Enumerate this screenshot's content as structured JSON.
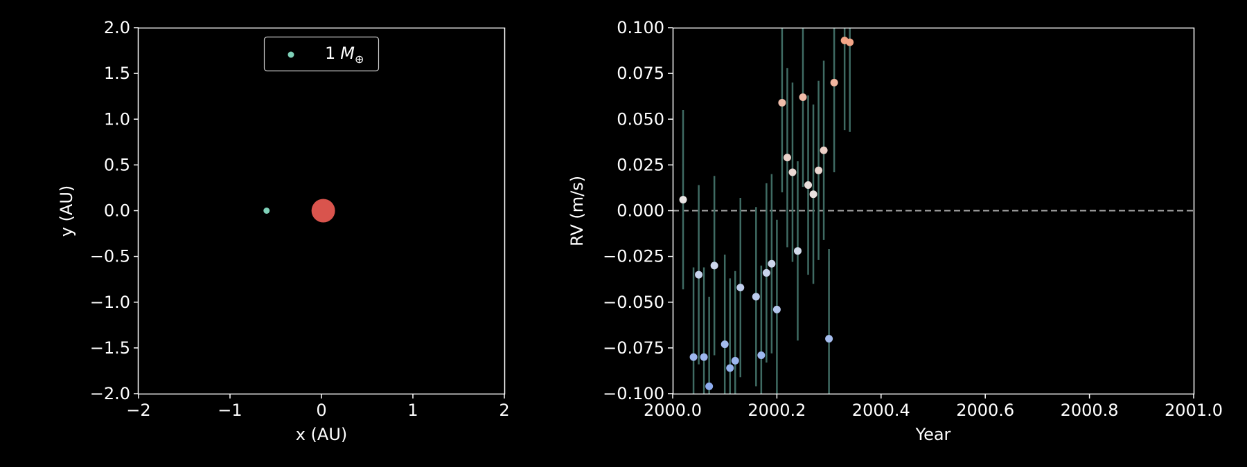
{
  "colors": {
    "background": "#000000",
    "axes": "#ffffff",
    "planet": "#7fd1b9",
    "star": "#d9544d",
    "error_bar": "#3f6b63",
    "zero_line": "#aaaaaa",
    "rv_cmap_low": "#8aabf0",
    "rv_cmap_mid": "#e8e8ea",
    "rv_cmap_high": "#f4a07f"
  },
  "chart_data": [
    {
      "type": "scatter",
      "panel": "orbit",
      "xlabel": "x (AU)",
      "ylabel": "y (AU)",
      "xlim": [
        -2,
        2
      ],
      "ylim": [
        -2,
        2
      ],
      "xticks": [
        "−2",
        "−1",
        "0",
        "1",
        "2"
      ],
      "yticks": [
        "2.0",
        "1.5",
        "1.0",
        "0.5",
        "0.0",
        "−0.5",
        "−1.0",
        "−1.5",
        "−2.0"
      ],
      "grid": false,
      "legend": {
        "placement": "upper-center",
        "label_value": "1",
        "label_unit": "M",
        "label_sub": "⊕"
      },
      "series": [
        {
          "name": "1 M⊕",
          "points": [
            [
              -0.6,
              0.0
            ]
          ]
        }
      ],
      "star": {
        "x": 0.02,
        "y": 0.0
      }
    },
    {
      "type": "scatter",
      "panel": "rv",
      "xlabel": "Year",
      "ylabel": "RV (m/s)",
      "xlim": [
        2000.0,
        2001.0
      ],
      "ylim": [
        -0.1,
        0.1
      ],
      "xticks": [
        "2000.0",
        "2000.2",
        "2000.4",
        "2000.6",
        "2000.8",
        "2001.0"
      ],
      "yticks": [
        "0.100",
        "0.075",
        "0.050",
        "0.025",
        "0.000",
        "−0.025",
        "−0.050",
        "−0.075",
        "−0.100"
      ],
      "grid": false,
      "zero_line": 0.0,
      "points": [
        {
          "x": 2000.02,
          "y": 0.006,
          "err": 0.049
        },
        {
          "x": 2000.04,
          "y": -0.08,
          "err": 0.049
        },
        {
          "x": 2000.05,
          "y": -0.035,
          "err": 0.049
        },
        {
          "x": 2000.06,
          "y": -0.08,
          "err": 0.049
        },
        {
          "x": 2000.07,
          "y": -0.096,
          "err": 0.049
        },
        {
          "x": 2000.08,
          "y": -0.03,
          "err": 0.049
        },
        {
          "x": 2000.1,
          "y": -0.073,
          "err": 0.049
        },
        {
          "x": 2000.11,
          "y": -0.086,
          "err": 0.049
        },
        {
          "x": 2000.12,
          "y": -0.082,
          "err": 0.049
        },
        {
          "x": 2000.13,
          "y": -0.042,
          "err": 0.049
        },
        {
          "x": 2000.16,
          "y": -0.047,
          "err": 0.049
        },
        {
          "x": 2000.17,
          "y": -0.079,
          "err": 0.049
        },
        {
          "x": 2000.18,
          "y": -0.034,
          "err": 0.049
        },
        {
          "x": 2000.19,
          "y": -0.029,
          "err": 0.049
        },
        {
          "x": 2000.2,
          "y": -0.054,
          "err": 0.049
        },
        {
          "x": 2000.21,
          "y": 0.059,
          "err": 0.049
        },
        {
          "x": 2000.22,
          "y": 0.029,
          "err": 0.049
        },
        {
          "x": 2000.23,
          "y": 0.021,
          "err": 0.049
        },
        {
          "x": 2000.24,
          "y": -0.022,
          "err": 0.049
        },
        {
          "x": 2000.25,
          "y": 0.062,
          "err": 0.049
        },
        {
          "x": 2000.26,
          "y": 0.014,
          "err": 0.049
        },
        {
          "x": 2000.27,
          "y": 0.009,
          "err": 0.049
        },
        {
          "x": 2000.28,
          "y": 0.022,
          "err": 0.049
        },
        {
          "x": 2000.29,
          "y": 0.033,
          "err": 0.049
        },
        {
          "x": 2000.3,
          "y": -0.07,
          "err": 0.049
        },
        {
          "x": 2000.31,
          "y": 0.07,
          "err": 0.049
        },
        {
          "x": 2000.33,
          "y": 0.093,
          "err": 0.049
        },
        {
          "x": 2000.34,
          "y": 0.092,
          "err": 0.049
        }
      ]
    }
  ]
}
